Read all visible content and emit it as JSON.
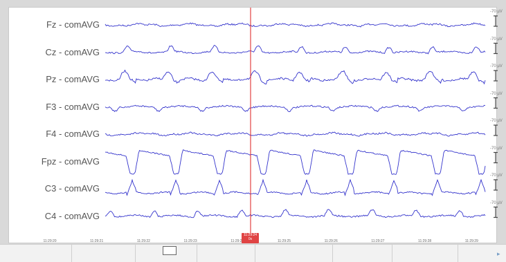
{
  "channels": [
    {
      "label": "Fz - comAVG",
      "scale": "-70 µV",
      "pattern": "low"
    },
    {
      "label": "Cz - comAVG",
      "scale": "-70 µV",
      "pattern": "bumps"
    },
    {
      "label": "Pz - comAVG",
      "scale": "-70 µV",
      "pattern": "bumps2"
    },
    {
      "label": "F3 - comAVG",
      "scale": "-70 µV",
      "pattern": "dips"
    },
    {
      "label": "F4 - comAVG",
      "scale": "-70 µV",
      "pattern": "low"
    },
    {
      "label": "Fpz - comAVG",
      "scale": "-70 µV",
      "pattern": "square"
    },
    {
      "label": "C3 - comAVG",
      "scale": "-70 µV",
      "pattern": "spikes"
    },
    {
      "label": "C4 - comAVG",
      "scale": "-70 µV",
      "pattern": "bumps"
    }
  ],
  "time_axis": {
    "labels": [
      "11:29:20",
      "11:29:21",
      "11:29:22",
      "11:29:23",
      "11:29:24",
      "11:29:25",
      "11:29:26",
      "11:29:27",
      "11:29:28",
      "11:29:29"
    ]
  },
  "cursor": {
    "time": "11:29:24",
    "sub": "0s",
    "color": "#e03030"
  },
  "colors": {
    "trace": "#3333cc",
    "cursor_badge": "#e04444"
  }
}
